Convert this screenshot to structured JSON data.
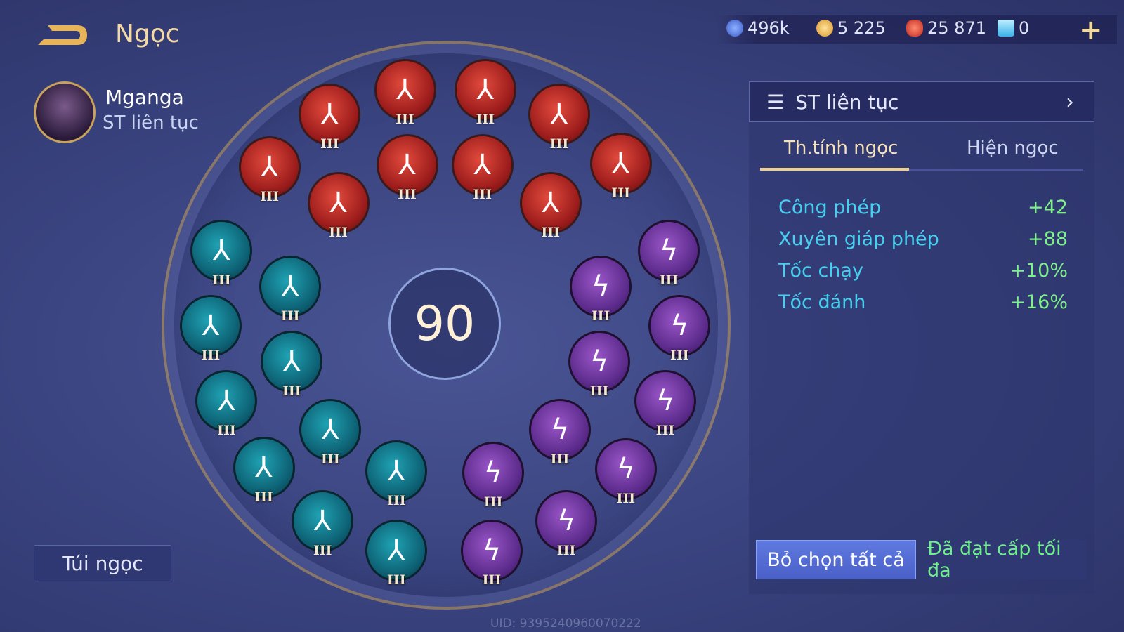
{
  "header": {
    "title": "Ngọc",
    "back_icon": "back-arrow-icon"
  },
  "resources": [
    {
      "icon": "blue-coin-icon",
      "value": "496k",
      "color": "#5a7fe0"
    },
    {
      "icon": "gold-coin-icon",
      "value": "5 225",
      "color": "#f2b84a"
    },
    {
      "icon": "red-gem-icon",
      "value": "25 871",
      "color": "#e0503e"
    },
    {
      "icon": "blue-card-icon",
      "value": "0",
      "color": "#6ad0f0"
    }
  ],
  "hero": {
    "name": "Mganga",
    "set": "ST liên tục"
  },
  "bag_label": "Túi ngọc",
  "level": "90",
  "gems": {
    "red": [
      "III",
      "III",
      "III",
      "III",
      "III",
      "III",
      "III",
      "III",
      "III",
      "III"
    ],
    "teal": [
      "III",
      "III",
      "III",
      "III",
      "III",
      "III",
      "III",
      "III",
      "III",
      "III"
    ],
    "purple": [
      "III",
      "III",
      "III",
      "III",
      "III",
      "III",
      "III",
      "III",
      "III",
      "III"
    ]
  },
  "panel": {
    "set_name": "ST liên tục",
    "tabs": [
      {
        "label": "Th.tính ngọc",
        "active": true
      },
      {
        "label": "Hiện ngọc",
        "active": false
      }
    ],
    "stats": [
      {
        "name": "Công phép",
        "value": "+42"
      },
      {
        "name": "Xuyên giáp phép",
        "value": "+88"
      },
      {
        "name": "Tốc chạy",
        "value": "+10%"
      },
      {
        "name": "Tốc đánh",
        "value": "+16%"
      }
    ],
    "deselect_label": "Bỏ chọn tất cả",
    "max_label": "Đã đạt cấp tối đa"
  },
  "uid": "UID: 9395240960070222"
}
